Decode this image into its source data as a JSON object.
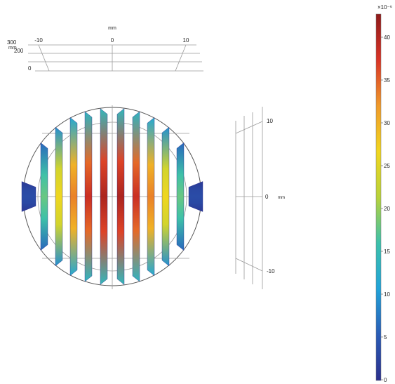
{
  "top_axis": {
    "unit": "mm",
    "x_ticks": [
      "-10",
      "0",
      "10"
    ],
    "depth_ticks": [
      "300",
      "200",
      "0"
    ],
    "depth_unit": "mm"
  },
  "side_axis": {
    "unit": "mm",
    "ticks": [
      "10",
      "0",
      "-10"
    ]
  },
  "colorbar": {
    "exponent_label": "×10⁻⁶",
    "ticks": [
      "40",
      "35",
      "30",
      "25",
      "20",
      "15",
      "10",
      "5",
      "0"
    ],
    "colormap": [
      "#2b2f8c",
      "#2a5cb6",
      "#21a3d9",
      "#3cc1ab",
      "#b8d23a",
      "#f1d61f",
      "#f09a2a",
      "#d93326",
      "#8e1a1a"
    ]
  }
}
